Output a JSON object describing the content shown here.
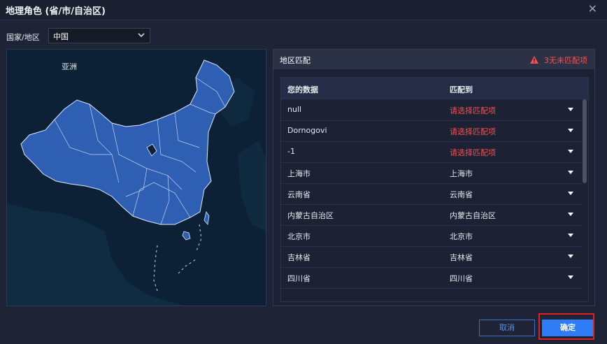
{
  "dialog": {
    "title": "地理角色 (省/市/自治区)",
    "close_symbol": "✕"
  },
  "country": {
    "label": "国家/地区",
    "selected": "中国"
  },
  "map": {
    "region_label": "亚洲",
    "land_color": "#2f5fb3",
    "sea_color": "#0c2135"
  },
  "match_panel": {
    "title": "地区匹配",
    "warning": "3无未匹配项",
    "columns": {
      "data": "您的数据",
      "match": "匹配到"
    },
    "rows": [
      {
        "data": "null",
        "match": "请选择匹配项",
        "unmatched": true
      },
      {
        "data": "Dornogovi",
        "match": "请选择匹配项",
        "unmatched": true
      },
      {
        "data": "-1",
        "match": "请选择匹配项",
        "unmatched": true
      },
      {
        "data": "上海市",
        "match": "上海市",
        "unmatched": false
      },
      {
        "data": "云南省",
        "match": "云南省",
        "unmatched": false
      },
      {
        "data": "内蒙古自治区",
        "match": "内蒙古自治区",
        "unmatched": false
      },
      {
        "data": "北京市",
        "match": "北京市",
        "unmatched": false
      },
      {
        "data": "吉林省",
        "match": "吉林省",
        "unmatched": false
      },
      {
        "data": "四川省",
        "match": "四川省",
        "unmatched": false
      }
    ]
  },
  "buttons": {
    "cancel": "取消",
    "ok": "确定"
  },
  "colors": {
    "accent": "#2e7cf6",
    "warning": "#ff4d4f",
    "highlight": "#e02020"
  }
}
